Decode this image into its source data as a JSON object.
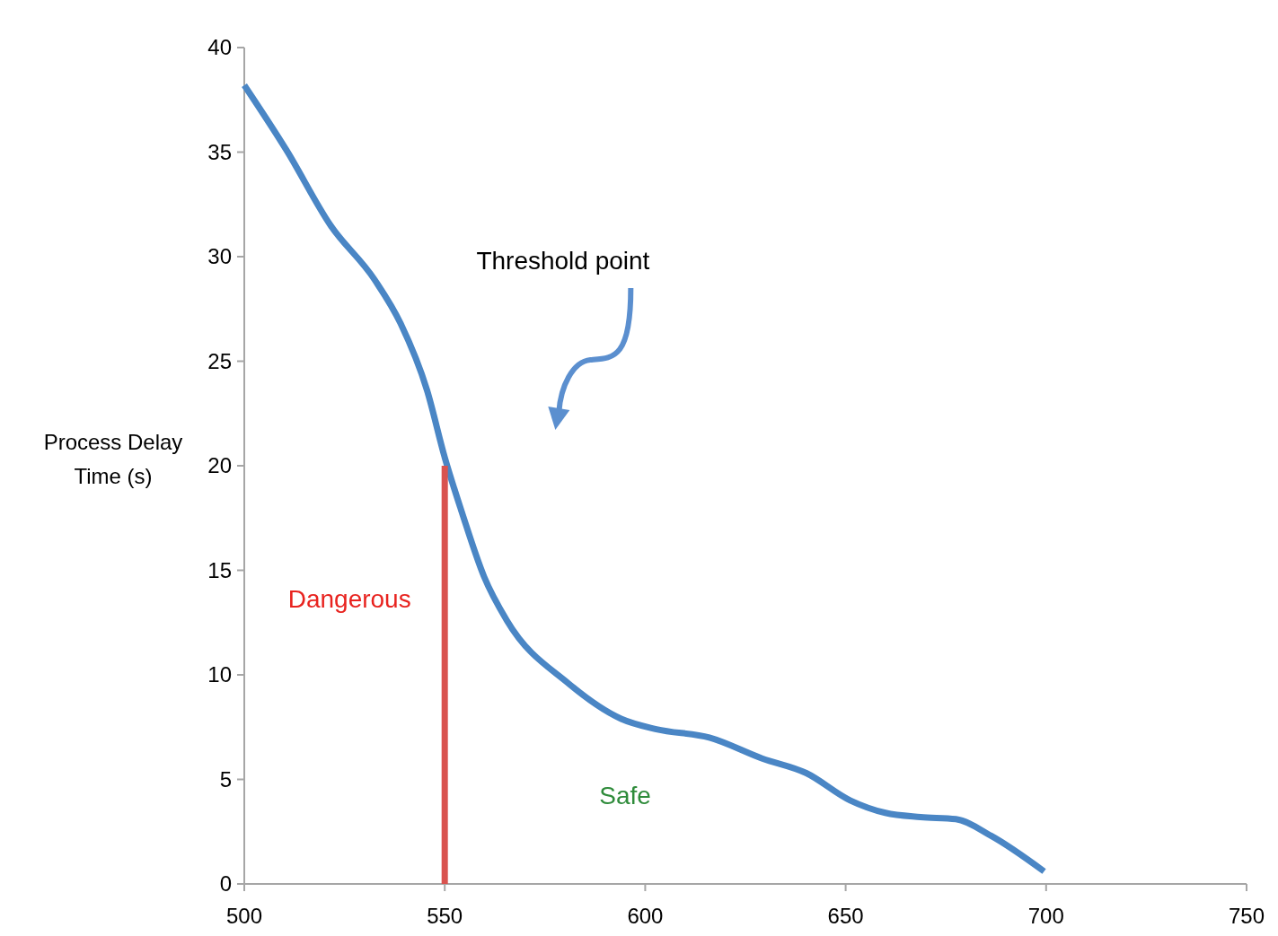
{
  "chart_data": {
    "type": "line",
    "ylabel": "Process Delay Time (s)",
    "xlim": [
      500,
      750
    ],
    "xticks": [
      500,
      550,
      600,
      650,
      700,
      750
    ],
    "ylim": [
      0,
      40
    ],
    "yticks": [
      0,
      5,
      10,
      15,
      20,
      25,
      30,
      35,
      40
    ],
    "grid": false,
    "line_style": "solid",
    "series": [
      {
        "color": "#4a86c5",
        "x": [
          500,
          510.5,
          521.5,
          532.5,
          539,
          545.6,
          550,
          554.4,
          559.8,
          565.5,
          580.8,
          594,
          602.8,
          616,
          629.2,
          640.2,
          651.1,
          659.9,
          668.7,
          677.5,
          686.3,
          699.5
        ],
        "values": [
          38.2,
          35.1,
          31.5,
          28.9,
          26.8,
          23.6,
          20.4,
          17.7,
          14.7,
          12.6,
          9.6,
          7.9,
          7.4,
          7.0,
          6.0,
          5.3,
          4.0,
          3.4,
          3.2,
          3.1,
          2.3,
          0.6
        ]
      },
      {
        "color": "#d9534f",
        "x": [
          550,
          550
        ],
        "values": [
          0,
          20
        ]
      }
    ],
    "annotations": [
      "Threshold point",
      "Dangerous",
      "Safe"
    ]
  }
}
